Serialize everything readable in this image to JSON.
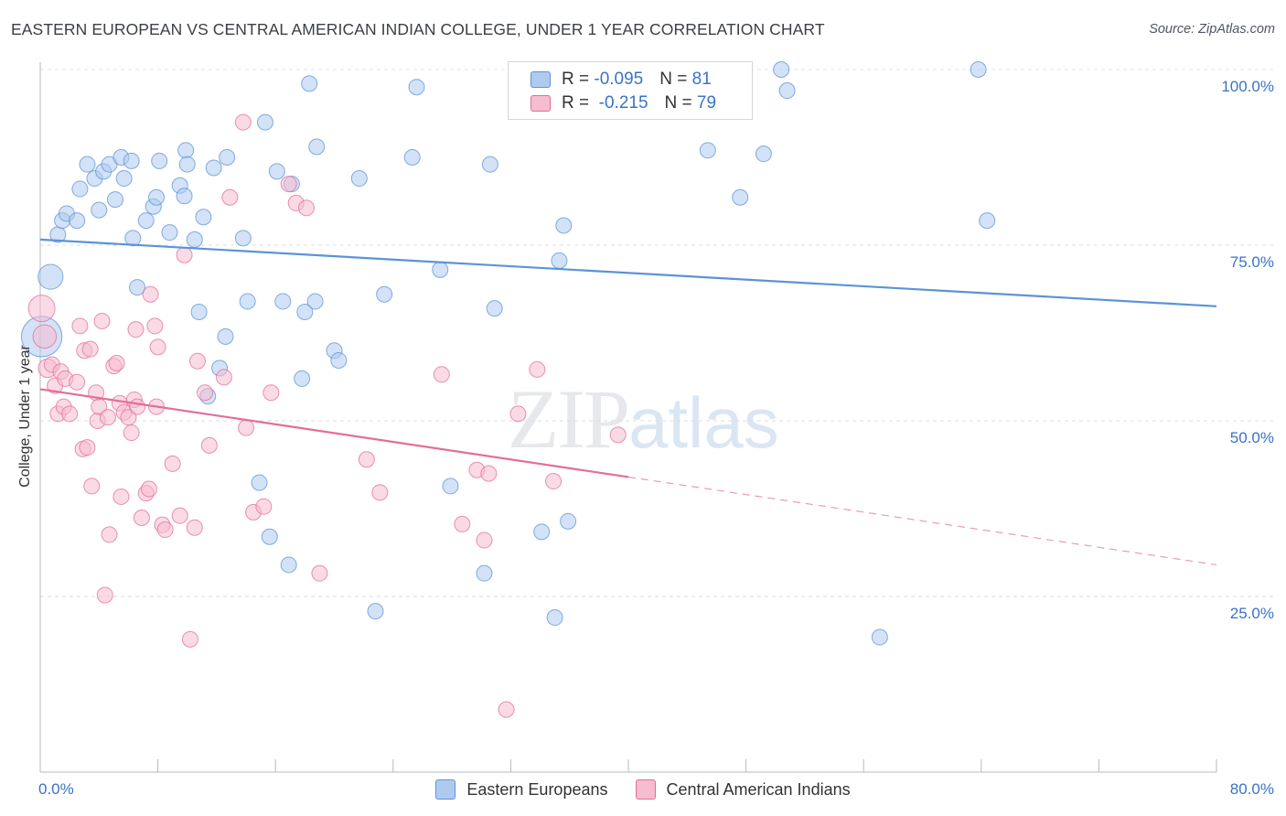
{
  "title": "EASTERN EUROPEAN VS CENTRAL AMERICAN INDIAN COLLEGE, UNDER 1 YEAR CORRELATION CHART",
  "source": "Source: ZipAtlas.com",
  "watermark": {
    "zip": "ZIP",
    "atlas": "atlas"
  },
  "legend": {
    "rows": [
      {
        "r_label": "R = ",
        "r_value": "-0.095",
        "n_label": "N = ",
        "n_value": "81",
        "color": "#aecbef"
      },
      {
        "r_label": "R = ",
        "r_value": " -0.215",
        "n_label": "N = ",
        "n_value": "79",
        "color": "#f6bcd0"
      }
    ]
  },
  "bottom_legend": [
    {
      "label": "Eastern Europeans",
      "color": "#aecbef"
    },
    {
      "label": "Central American Indians",
      "color": "#f6bcd0"
    }
  ],
  "x_axis": {
    "min_label": "0.0%",
    "max_label": "80.0%"
  },
  "chart_data": {
    "type": "scatter",
    "xlabel": "",
    "ylabel": "College, Under 1 year",
    "xlim": [
      0,
      80
    ],
    "ylim": [
      0,
      105
    ],
    "y_ticks": [
      25,
      50,
      75,
      100
    ],
    "y_tick_labels": [
      "25.0%",
      "50.0%",
      "75.0%",
      "100.0%"
    ],
    "grid": true,
    "series": [
      {
        "name": "Eastern Europeans",
        "color": "#5b93d9",
        "fill": "#aecbef",
        "trend": {
          "x0": 0,
          "y0": 75.8,
          "x1": 80,
          "y1": 66.3,
          "dashed_from": null
        },
        "points": [
          [
            0.1,
            62,
            2.6
          ],
          [
            0.7,
            70.5,
            1.6
          ],
          [
            1.2,
            76.5,
            1
          ],
          [
            1.5,
            78.5,
            1
          ],
          [
            1.8,
            79.5,
            1
          ],
          [
            2.5,
            78.5,
            1
          ],
          [
            2.7,
            83,
            1
          ],
          [
            3.2,
            86.5,
            1
          ],
          [
            3.7,
            84.5,
            1
          ],
          [
            4.0,
            80,
            1
          ],
          [
            4.3,
            85.5,
            1
          ],
          [
            4.7,
            86.5,
            1
          ],
          [
            5.1,
            81.5,
            1
          ],
          [
            5.5,
            87.5,
            1
          ],
          [
            5.7,
            84.5,
            1
          ],
          [
            6.2,
            87,
            1
          ],
          [
            6.3,
            76,
            1
          ],
          [
            6.6,
            69,
            1
          ],
          [
            7.2,
            78.5,
            1
          ],
          [
            7.7,
            80.5,
            1
          ],
          [
            7.9,
            81.8,
            1
          ],
          [
            8.1,
            87,
            1
          ],
          [
            8.8,
            76.8,
            1
          ],
          [
            9.5,
            83.5,
            1
          ],
          [
            9.8,
            82,
            1
          ],
          [
            9.9,
            88.5,
            1
          ],
          [
            10.0,
            86.5,
            1
          ],
          [
            10.5,
            75.8,
            1
          ],
          [
            10.8,
            65.5,
            1
          ],
          [
            11.1,
            79,
            1
          ],
          [
            11.4,
            53.5,
            1
          ],
          [
            11.8,
            86,
            1
          ],
          [
            12.2,
            57.5,
            1
          ],
          [
            12.6,
            62,
            1
          ],
          [
            12.7,
            87.5,
            1
          ],
          [
            13.8,
            76,
            1
          ],
          [
            14.1,
            67,
            1
          ],
          [
            14.9,
            41.2,
            1
          ],
          [
            15.3,
            92.5,
            1
          ],
          [
            15.6,
            33.5,
            1
          ],
          [
            16.1,
            85.5,
            1
          ],
          [
            16.5,
            67,
            1
          ],
          [
            16.9,
            29.5,
            1
          ],
          [
            17.1,
            83.7,
            1
          ],
          [
            17.8,
            56,
            1
          ],
          [
            18.0,
            65.5,
            1
          ],
          [
            18.3,
            98,
            1
          ],
          [
            18.7,
            67,
            1
          ],
          [
            18.8,
            89,
            1
          ],
          [
            20.0,
            60,
            1
          ],
          [
            20.3,
            58.6,
            1
          ],
          [
            21.7,
            84.5,
            1
          ],
          [
            22.8,
            22.9,
            1
          ],
          [
            23.4,
            68,
            1
          ],
          [
            25.3,
            87.5,
            1
          ],
          [
            25.6,
            97.5,
            1
          ],
          [
            27.2,
            71.5,
            1
          ],
          [
            27.9,
            40.7,
            1
          ],
          [
            30.2,
            28.3,
            1
          ],
          [
            30.6,
            86.5,
            1
          ],
          [
            30.9,
            66,
            1
          ],
          [
            34.1,
            34.2,
            1
          ],
          [
            35.0,
            22,
            1
          ],
          [
            35.3,
            72.8,
            1
          ],
          [
            35.6,
            77.8,
            1
          ],
          [
            35.9,
            35.7,
            1
          ],
          [
            39.5,
            100,
            1
          ],
          [
            45.4,
            88.5,
            1
          ],
          [
            47.6,
            81.8,
            1
          ],
          [
            49.2,
            88,
            1
          ],
          [
            50.4,
            100,
            1
          ],
          [
            50.8,
            97,
            1
          ],
          [
            57.1,
            19.2,
            1
          ],
          [
            63.8,
            100,
            1
          ],
          [
            64.4,
            78.5,
            1
          ]
        ]
      },
      {
        "name": "Central American Indians",
        "color": "#e36d9a",
        "fill": "#f6bcd0",
        "trend": {
          "x0": 0,
          "y0": 54.5,
          "x1": 80,
          "y1": 29.5,
          "dashed_from": 40
        },
        "points": [
          [
            0.1,
            66,
            1.7
          ],
          [
            0.3,
            62,
            1.5
          ],
          [
            0.5,
            57.5,
            1.2
          ],
          [
            0.8,
            58,
            1
          ],
          [
            1.0,
            55,
            1
          ],
          [
            1.2,
            51,
            1
          ],
          [
            1.4,
            57,
            1
          ],
          [
            1.6,
            52,
            1
          ],
          [
            1.7,
            56,
            1
          ],
          [
            2.0,
            51,
            1
          ],
          [
            2.5,
            55.5,
            1
          ],
          [
            2.7,
            63.5,
            1
          ],
          [
            2.9,
            46,
            1
          ],
          [
            3.0,
            60,
            1
          ],
          [
            3.2,
            46.2,
            1
          ],
          [
            3.4,
            60.2,
            1
          ],
          [
            3.5,
            40.7,
            1
          ],
          [
            3.8,
            54,
            1
          ],
          [
            3.9,
            50,
            1
          ],
          [
            4.0,
            52,
            1
          ],
          [
            4.2,
            64.2,
            1
          ],
          [
            4.4,
            25.2,
            1
          ],
          [
            4.6,
            50.5,
            1
          ],
          [
            4.7,
            33.8,
            1
          ],
          [
            5.0,
            57.8,
            1
          ],
          [
            5.2,
            58.2,
            1
          ],
          [
            5.4,
            52.5,
            1
          ],
          [
            5.5,
            39.2,
            1
          ],
          [
            5.7,
            51.2,
            1
          ],
          [
            6.0,
            50.5,
            1
          ],
          [
            6.2,
            48.3,
            1
          ],
          [
            6.4,
            53,
            1
          ],
          [
            6.5,
            63,
            1
          ],
          [
            6.6,
            52,
            1
          ],
          [
            6.9,
            36.2,
            1
          ],
          [
            7.2,
            39.7,
            1
          ],
          [
            7.4,
            40.3,
            1
          ],
          [
            7.5,
            68,
            1
          ],
          [
            7.8,
            63.5,
            1
          ],
          [
            7.9,
            52,
            1
          ],
          [
            8.0,
            60.5,
            1
          ],
          [
            8.3,
            35.2,
            1
          ],
          [
            8.5,
            34.5,
            1
          ],
          [
            9.0,
            43.9,
            1
          ],
          [
            9.5,
            36.5,
            1
          ],
          [
            9.8,
            73.6,
            1
          ],
          [
            10.2,
            18.9,
            1
          ],
          [
            10.5,
            34.8,
            1
          ],
          [
            10.7,
            58.5,
            1
          ],
          [
            11.2,
            54,
            1
          ],
          [
            11.5,
            46.5,
            1
          ],
          [
            12.5,
            56.2,
            1
          ],
          [
            12.9,
            81.8,
            1
          ],
          [
            13.8,
            92.5,
            1
          ],
          [
            14.0,
            49,
            1
          ],
          [
            14.5,
            37,
            1
          ],
          [
            15.2,
            37.8,
            1
          ],
          [
            15.7,
            54,
            1
          ],
          [
            16.9,
            83.7,
            1
          ],
          [
            17.4,
            81,
            1
          ],
          [
            18.1,
            80.3,
            1
          ],
          [
            19.0,
            28.3,
            1
          ],
          [
            22.2,
            44.5,
            1
          ],
          [
            23.1,
            39.8,
            1
          ],
          [
            27.3,
            56.6,
            1
          ],
          [
            28.7,
            35.3,
            1
          ],
          [
            29.7,
            43,
            1
          ],
          [
            30.2,
            33,
            1
          ],
          [
            30.5,
            42.5,
            1
          ],
          [
            31.7,
            8.9,
            1
          ],
          [
            32.5,
            51,
            1
          ],
          [
            33.8,
            57.3,
            1
          ],
          [
            34.9,
            41.4,
            1
          ],
          [
            39.3,
            48,
            1
          ]
        ]
      }
    ]
  }
}
